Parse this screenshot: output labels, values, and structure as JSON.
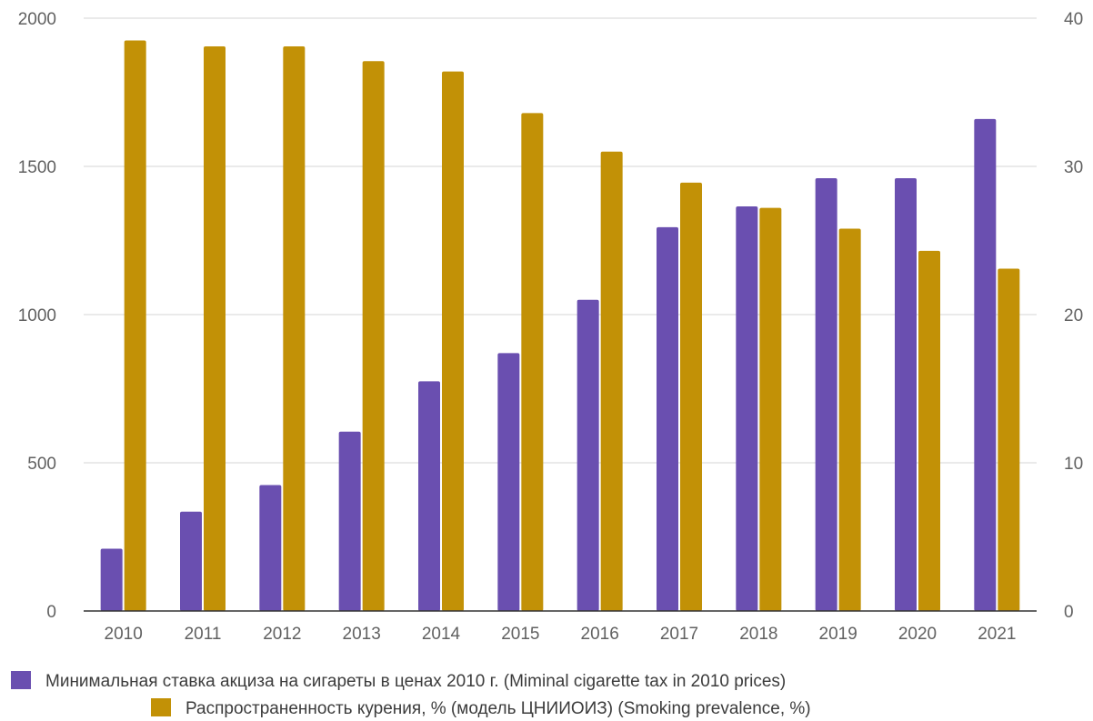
{
  "chart_data": {
    "type": "bar",
    "categories": [
      "2010",
      "2011",
      "2012",
      "2013",
      "2014",
      "2015",
      "2016",
      "2017",
      "2018",
      "2019",
      "2020",
      "2021"
    ],
    "series": [
      {
        "name": "Минимальная ставка акциза на сигареты в ценах 2010 г. (Miminal cigarette tax in 2010 prices)",
        "axis": "left",
        "color": "#6a4fb0",
        "values": [
          210,
          335,
          425,
          605,
          775,
          870,
          1050,
          1295,
          1365,
          1460,
          1460,
          1660
        ]
      },
      {
        "name": "Распространенность курения, % (модель ЦНИИОИЗ) (Smoking prevalence, %)",
        "axis": "right",
        "color": "#c29106",
        "values": [
          38.5,
          38.1,
          38.1,
          37.1,
          36.4,
          33.6,
          31.0,
          28.9,
          27.2,
          25.8,
          24.3,
          23.1
        ]
      }
    ],
    "y_left": {
      "ylim": [
        0,
        2000
      ],
      "ticks": [
        "0",
        "500",
        "1000",
        "1500",
        "2000"
      ]
    },
    "y_right": {
      "ylim": [
        0,
        40
      ],
      "ticks": [
        "0",
        "10",
        "20",
        "30",
        "40"
      ]
    },
    "grid": true,
    "legend_placement": "bottom"
  }
}
